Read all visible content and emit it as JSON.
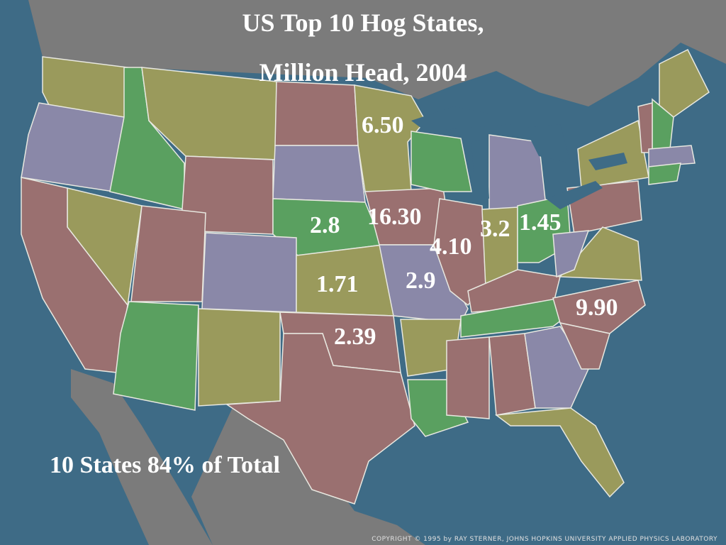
{
  "title": {
    "line1": "US Top 10 Hog States,",
    "line2": "Million Head, 2004"
  },
  "state_labels": [
    {
      "state": "Minnesota",
      "text": "6.50"
    },
    {
      "state": "Nebraska",
      "text": "2.8"
    },
    {
      "state": "Iowa",
      "text": "16.30"
    },
    {
      "state": "Illinois",
      "text": "4.10"
    },
    {
      "state": "Indiana",
      "text": "3.2"
    },
    {
      "state": "Ohio",
      "text": "1.45"
    },
    {
      "state": "Kansas",
      "text": "1.71"
    },
    {
      "state": "Missouri",
      "text": "2.9"
    },
    {
      "state": "North Carolina",
      "text": "9.90"
    },
    {
      "state": "Oklahoma",
      "text": "2.39"
    }
  ],
  "note": "10 States 84% of Total",
  "copyright": "COPYRIGHT © 1995 by RAY STERNER, JOHNS HOPKINS UNIVERSITY APPLIED PHYSICS LABORATORY"
}
